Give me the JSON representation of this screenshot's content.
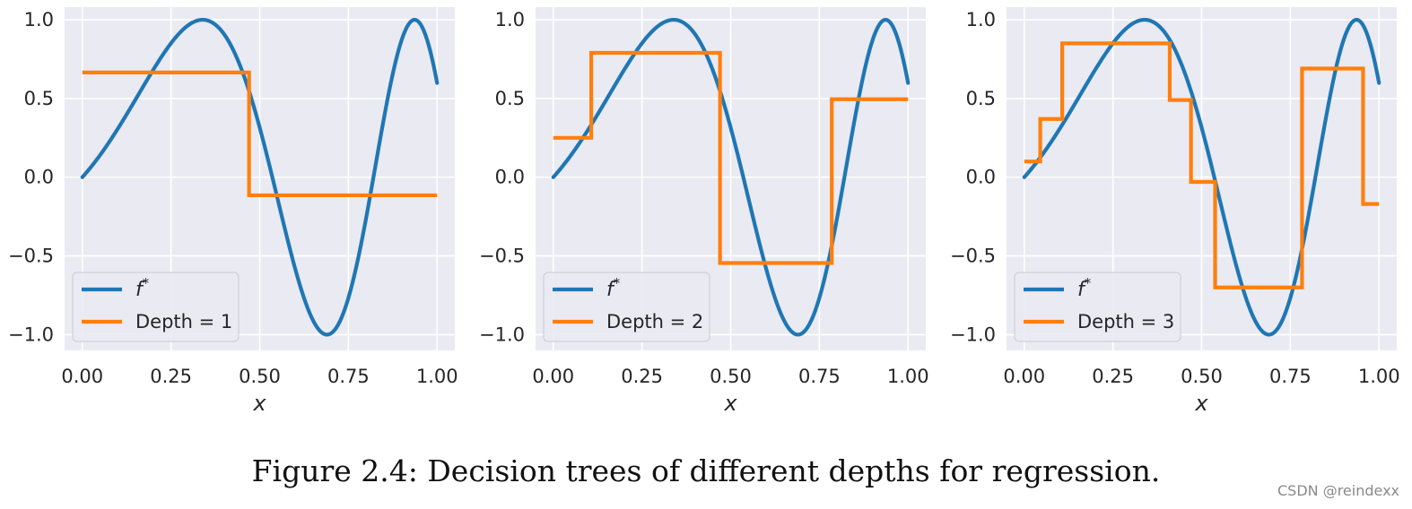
{
  "caption": "Figure 2.4: Decision trees of different depths for regression.",
  "watermark": "CSDN @reindexx",
  "colors": {
    "true_fn": "#1f77b4",
    "tree": "#ff7f0e",
    "plot_bg": "#eaeaf2",
    "grid": "#ffffff"
  },
  "chart_data": [
    {
      "type": "line",
      "xlabel": "x",
      "ylabel": "",
      "xlim": [
        -0.05,
        1.05
      ],
      "ylim": [
        -1.1,
        1.08
      ],
      "xticks": [
        "0.00",
        "0.25",
        "0.50",
        "0.75",
        "1.00"
      ],
      "yticks": [
        "−1.0",
        "−0.5",
        "0.0",
        "0.5",
        "1.0"
      ],
      "grid": true,
      "legend_position": "lower-left",
      "series": [
        {
          "name": "f*",
          "function": "sin(2*pi*x^2 + 2.5*x)",
          "x_range": [
            0,
            1
          ]
        },
        {
          "name": "Depth = 1",
          "step_x": [
            0,
            0.47,
            1.0
          ],
          "step_y": [
            0.665,
            -0.115
          ]
        }
      ]
    },
    {
      "type": "line",
      "xlabel": "x",
      "ylabel": "",
      "xlim": [
        -0.05,
        1.05
      ],
      "ylim": [
        -1.1,
        1.08
      ],
      "xticks": [
        "0.00",
        "0.25",
        "0.50",
        "0.75",
        "1.00"
      ],
      "yticks": [
        "−1.0",
        "−0.5",
        "0.0",
        "0.5",
        "1.0"
      ],
      "grid": true,
      "legend_position": "lower-left",
      "series": [
        {
          "name": "f*",
          "function": "sin(2*pi*x^2 + 2.5*x)",
          "x_range": [
            0,
            1
          ]
        },
        {
          "name": "Depth = 2",
          "step_x": [
            0,
            0.107,
            0.47,
            0.785,
            1.0
          ],
          "step_y": [
            0.25,
            0.79,
            -0.545,
            0.495
          ]
        }
      ]
    },
    {
      "type": "line",
      "xlabel": "x",
      "ylabel": "",
      "xlim": [
        -0.05,
        1.05
      ],
      "ylim": [
        -1.1,
        1.08
      ],
      "xticks": [
        "0.00",
        "0.25",
        "0.50",
        "0.75",
        "1.00"
      ],
      "yticks": [
        "−1.0",
        "−0.5",
        "0.0",
        "0.5",
        "1.0"
      ],
      "grid": true,
      "legend_position": "lower-left",
      "series": [
        {
          "name": "f*",
          "function": "sin(2*pi*x^2 + 2.5*x)",
          "x_range": [
            0,
            1
          ]
        },
        {
          "name": "Depth = 3",
          "step_x": [
            0,
            0.045,
            0.107,
            0.41,
            0.47,
            0.538,
            0.783,
            0.955,
            1.0
          ],
          "step_y": [
            0.1,
            0.37,
            0.85,
            0.49,
            -0.03,
            -0.7,
            0.69,
            -0.17
          ]
        }
      ]
    }
  ]
}
